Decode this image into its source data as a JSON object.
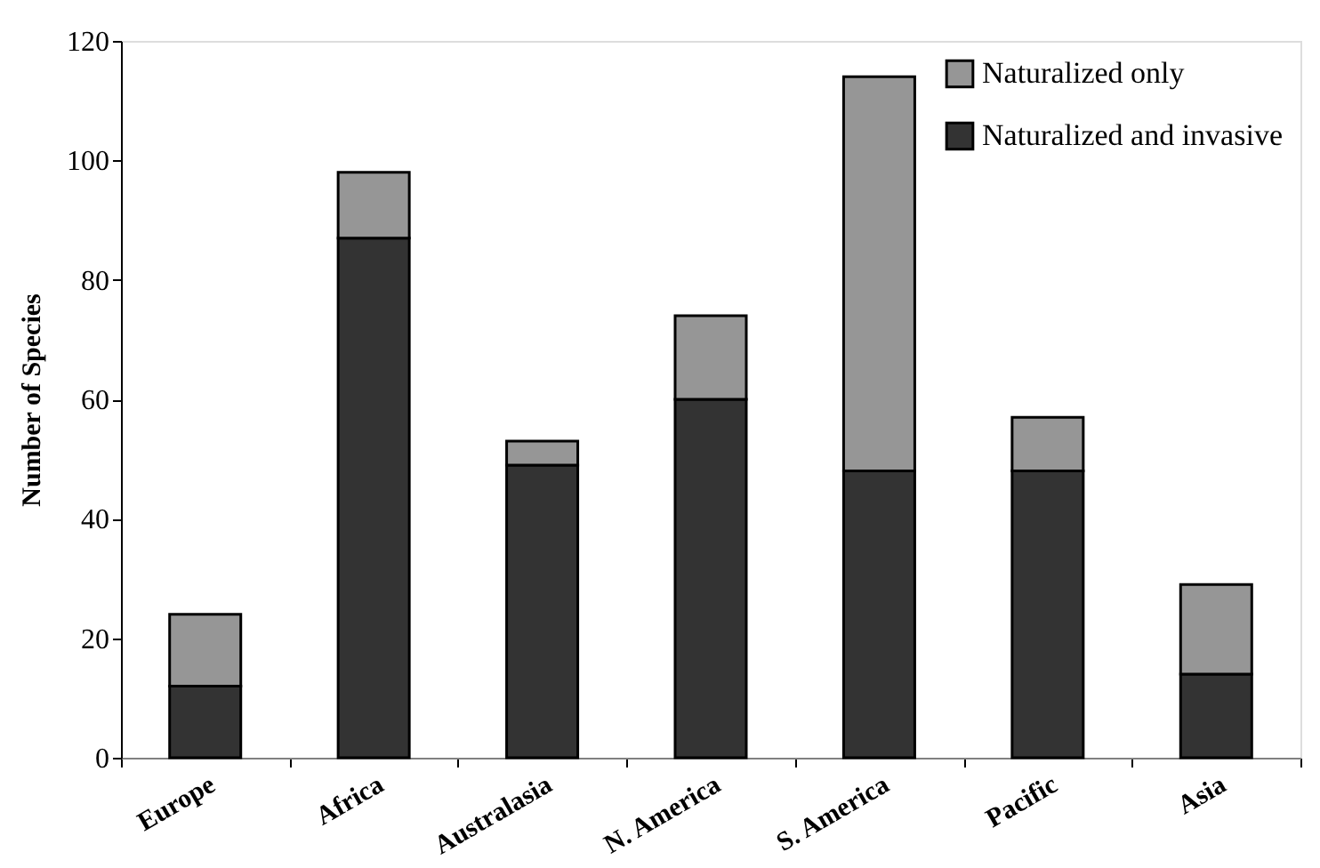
{
  "chart_data": {
    "type": "bar",
    "stacked": true,
    "ylabel": "Number of Species",
    "categories": [
      "Europe",
      "Africa",
      "Australasia",
      "N. America",
      "S. America",
      "Pacific",
      "Asia"
    ],
    "series": [
      {
        "name": "Naturalized and invasive",
        "color": "#333333",
        "values": [
          12,
          87,
          49,
          60,
          48,
          48,
          14
        ]
      },
      {
        "name": "Naturalized only",
        "color": "#969696",
        "values": [
          12,
          11,
          4,
          14,
          66,
          9,
          15
        ]
      }
    ],
    "ylim": [
      0,
      120
    ],
    "yticks": [
      0,
      20,
      40,
      60,
      80,
      100,
      120
    ],
    "grid": false,
    "legend": "top right"
  }
}
